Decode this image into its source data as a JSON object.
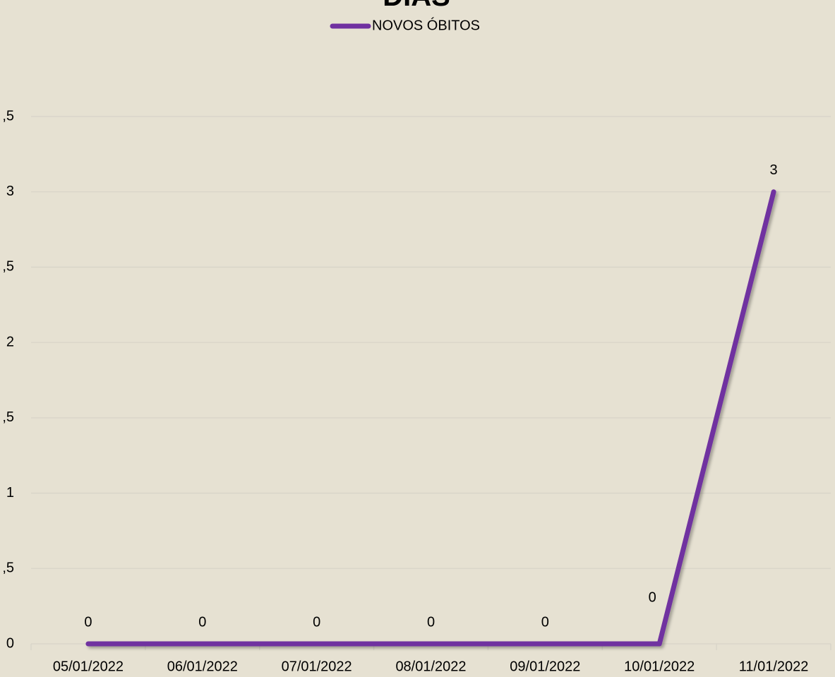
{
  "chart_data": {
    "type": "line",
    "title": "DIAS",
    "categories": [
      "05/01/2022",
      "06/01/2022",
      "07/01/2022",
      "08/01/2022",
      "09/01/2022",
      "10/01/2022",
      "11/01/2022"
    ],
    "series": [
      {
        "name": "NOVOS ÓBITOS",
        "color": "#7030a0",
        "values": [
          0,
          0,
          0,
          0,
          0,
          0,
          3
        ]
      }
    ],
    "ylim": [
      0,
      3.5
    ],
    "yticks": [
      0,
      {
        "value": 0.5,
        "label": ",5"
      },
      1,
      {
        "value": 1.5,
        "label": ",5"
      },
      2,
      {
        "value": 2.5,
        "label": ",5"
      },
      3,
      {
        "value": 3.5,
        "label": ",5"
      }
    ],
    "grid": true,
    "legend": "top"
  }
}
